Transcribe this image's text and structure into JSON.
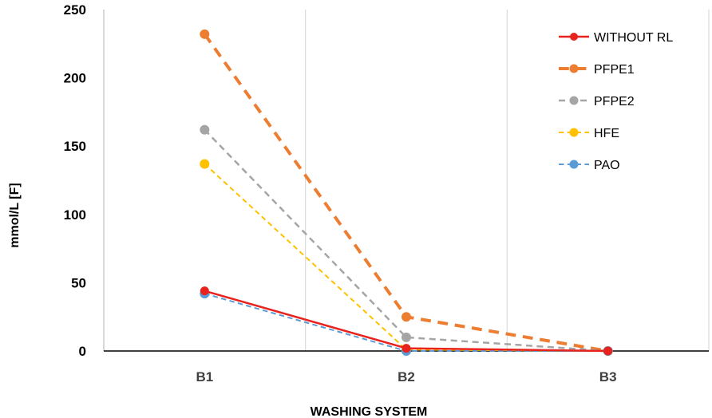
{
  "chart_data": {
    "type": "line",
    "title": "",
    "xlabel": "WASHING SYSTEM",
    "ylabel": "mmol/L [F]",
    "categories": [
      "B1",
      "B2",
      "B3"
    ],
    "ylim": [
      0,
      250
    ],
    "yticks": [
      0,
      50,
      100,
      150,
      200,
      250
    ],
    "grid": "vertical category separators",
    "legend_position": "top-right",
    "series": [
      {
        "name": "WITHOUT RL",
        "values": [
          44,
          2,
          0
        ],
        "color": "#e8231e",
        "dash": "solid",
        "width": 2.5,
        "marker": 9
      },
      {
        "name": "PFPE1",
        "values": [
          232,
          25,
          0
        ],
        "color": "#ed7d31",
        "dash": "dashed",
        "width": 4,
        "marker": 10
      },
      {
        "name": "PFPE2",
        "values": [
          162,
          10,
          0
        ],
        "color": "#a5a5a5",
        "dash": "dashed",
        "width": 2.5,
        "marker": 10
      },
      {
        "name": "HFE",
        "values": [
          137,
          1,
          0
        ],
        "color": "#ffc000",
        "dash": "dashed",
        "width": 2,
        "marker": 10
      },
      {
        "name": "PAO",
        "values": [
          42,
          0,
          0
        ],
        "color": "#5b9bd5",
        "dash": "dashed",
        "width": 2,
        "marker": 10
      }
    ]
  }
}
